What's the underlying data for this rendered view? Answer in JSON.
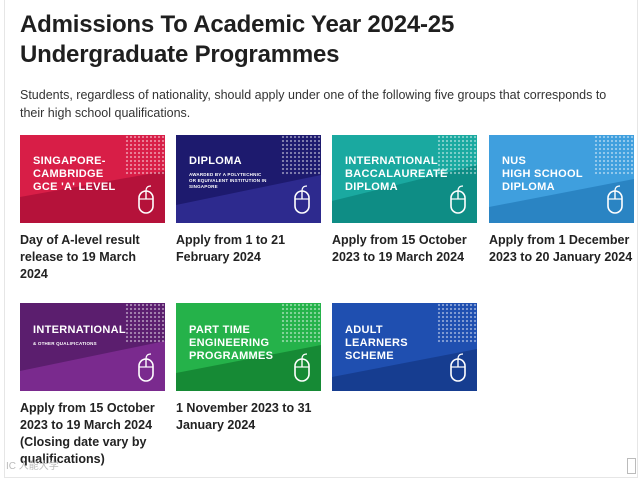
{
  "page": {
    "title": "Admissions To Academic Year 2024-25 Undergraduate Programmes",
    "intro": "Students, regardless of nationality, should apply under one of the following five groups that corresponds to their high school qualifications."
  },
  "cards": [
    {
      "line1": "SINGAPORE-",
      "line2": "CAMBRIDGE",
      "line3": "GCE 'A' LEVEL",
      "sub": "",
      "caption": "Day of A-level result release to 19 March 2024",
      "color": "#d81e47",
      "accent": "#b5123a",
      "icon": "mouse-icon"
    },
    {
      "line1": "DIPLOMA",
      "line2": "",
      "line3": "",
      "sub": "AWARDED BY A POLYTECHNIC OR EQUIVALENT INSTITUTION IN SINGAPORE",
      "caption": "Apply from 1 to 21 February 2024",
      "color": "#1d1a6e",
      "accent": "#2d2a8e",
      "icon": "mouse-icon"
    },
    {
      "line1": "INTERNATIONAL",
      "line2": "BACCALAUREATE",
      "line3": "DIPLOMA",
      "sub": "",
      "caption": "Apply from 15 October 2023 to 19 March 2024",
      "color": "#1aa9a0",
      "accent": "#0e8d85",
      "icon": "mouse-icon"
    },
    {
      "line1": "NUS",
      "line2": "HIGH SCHOOL",
      "line3": "DIPLOMA",
      "sub": "",
      "caption": "Apply from 1 December 2023 to 20 January 2024",
      "color": "#3f9fde",
      "accent": "#2a84c3",
      "icon": "mouse-icon"
    },
    {
      "line1": "INTERNATIONAL",
      "line2": "",
      "line3": "",
      "sub": "& OTHER QUALIFICATIONS",
      "caption": "Apply from 15 October 2023 to 19 March 2024 (Closing date vary by qualifications)",
      "color": "#5b1e6e",
      "accent": "#7a2a8e",
      "icon": "mouse-icon"
    },
    {
      "line1": "PART TIME",
      "line2": "ENGINEERING",
      "line3": "PROGRAMMES",
      "sub": "",
      "caption": "1 November 2023 to 31 January 2024",
      "color": "#25b24a",
      "accent": "#168a35",
      "icon": "mouse-icon"
    },
    {
      "line1": "ADULT",
      "line2": "LEARNERS",
      "line3": "SCHEME",
      "sub": "",
      "caption": "",
      "color": "#1f4fb0",
      "accent": "#163d90",
      "icon": "mouse-icon"
    }
  ],
  "watermark": "IC 人能大学"
}
